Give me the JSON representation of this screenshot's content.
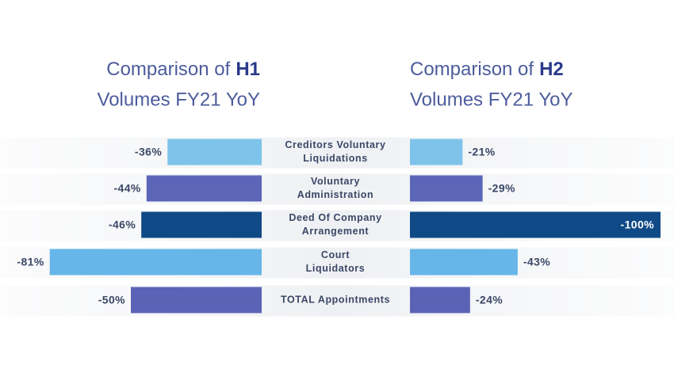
{
  "chart_data": [
    {
      "type": "bar",
      "orientation": "horizontal",
      "title": [
        "Comparison of",
        "H1",
        "Volumes FY21 YoY"
      ],
      "categories": [
        [
          "Creditors Voluntary",
          "Liquidations"
        ],
        [
          "Voluntary",
          "Administration"
        ],
        [
          "Deed Of Company",
          "Arrangement"
        ],
        [
          "Court",
          "Liquidators"
        ],
        [
          "TOTAL Appointments"
        ]
      ],
      "values": [
        -36,
        -44,
        -46,
        -81,
        -50
      ],
      "value_labels": [
        "-36%",
        "-44%",
        "-46%",
        "-81%",
        "-50%"
      ],
      "colors": [
        "#7ec4ea",
        "#5b66b8",
        "#0f4a86",
        "#66b6e9",
        "#5b63b6"
      ],
      "xlim": [
        -100,
        0
      ]
    },
    {
      "type": "bar",
      "orientation": "horizontal",
      "title": [
        "Comparison of",
        "H2",
        "Volumes FY21 YoY"
      ],
      "values": [
        -21,
        -29,
        -100,
        -43,
        -24
      ],
      "value_labels": [
        "-21%",
        "-29%",
        "-100%",
        "-43%",
        "-24%"
      ],
      "colors": [
        "#7ec4ea",
        "#5b66b8",
        "#0f4a86",
        "#66b6e9",
        "#5b63b6"
      ],
      "xlim": [
        -100,
        0
      ]
    }
  ]
}
